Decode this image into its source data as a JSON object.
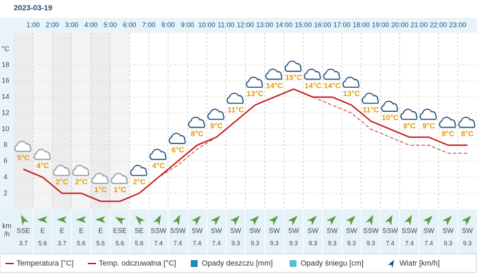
{
  "date": "2023-03-19",
  "chart_data": {
    "type": "line",
    "hour_labels": [
      "1:00",
      "2:00",
      "3:00",
      "4:00",
      "5:00",
      "6:00",
      "7:00",
      "8:00",
      "9:00",
      "10:00",
      "11:00",
      "12:00",
      "13:00",
      "14:00",
      "15:00",
      "16:00",
      "17:00",
      "18:00",
      "19:00",
      "20:00",
      "21:00",
      "22:00",
      "23:00"
    ],
    "y_axis_label": "°C",
    "ylim": [
      0,
      22
    ],
    "yticks": [
      2,
      4,
      6,
      8,
      10,
      12,
      14,
      16,
      18
    ],
    "grid": true,
    "series": [
      {
        "name": "Temperatura [°C]",
        "color": "#c81e1e",
        "dashed": false,
        "values": [
          5,
          4,
          2,
          2,
          1,
          1,
          2,
          4,
          6,
          8,
          9,
          11,
          13,
          14,
          15,
          14,
          14,
          13,
          11,
          10,
          9,
          9,
          8,
          8
        ],
        "value_labels": [
          "5°C",
          "4°C",
          "2°C",
          "2°C",
          "1°C",
          "1°C",
          "2°C",
          "4°C",
          "6°C",
          "8°C",
          "9°C",
          "11°C",
          "13°C",
          "14°C",
          "15°C",
          "14°C",
          "14°C",
          "13°C",
          "11°C",
          "10°C",
          "9°C",
          "9°C",
          "8°C",
          "8°C"
        ]
      },
      {
        "name": "Temp. odczuwalna [°C]",
        "color": "#c81e1e",
        "dashed": true,
        "values": [
          5,
          4,
          2,
          2,
          1,
          1,
          2,
          4,
          5.5,
          7.5,
          9,
          11,
          13,
          14,
          15,
          14,
          13,
          12,
          10,
          9,
          8,
          8,
          7,
          7
        ]
      }
    ],
    "precipitation": [
      {
        "name": "Opady deszczu [mm]",
        "color": "#1a8bb5"
      },
      {
        "name": "Opady śniegu [cm]",
        "color": "#5bbcd6"
      }
    ],
    "wind": {
      "name": "Wiatr [km/h]",
      "unit_label": [
        "km",
        "/h"
      ],
      "color": "#5e9a3c",
      "directions": [
        "SSE",
        "E",
        "E",
        "E",
        "E",
        "ESE",
        "SE",
        "SSW",
        "SSW",
        "SW",
        "SW",
        "SW",
        "SW",
        "SW",
        "SW",
        "SW",
        "SW",
        "SW",
        "SSW",
        "SSW",
        "SSW",
        "SW",
        "SW",
        "SW"
      ],
      "speeds": [
        3.7,
        5.6,
        3.7,
        5.6,
        5.6,
        5.6,
        5.6,
        7.4,
        7.4,
        7.4,
        7.4,
        9.3,
        9.3,
        9.3,
        9.3,
        9.3,
        9.3,
        9.3,
        9.3,
        7.4,
        7.4,
        7.4,
        9.3,
        9.3
      ]
    }
  }
}
